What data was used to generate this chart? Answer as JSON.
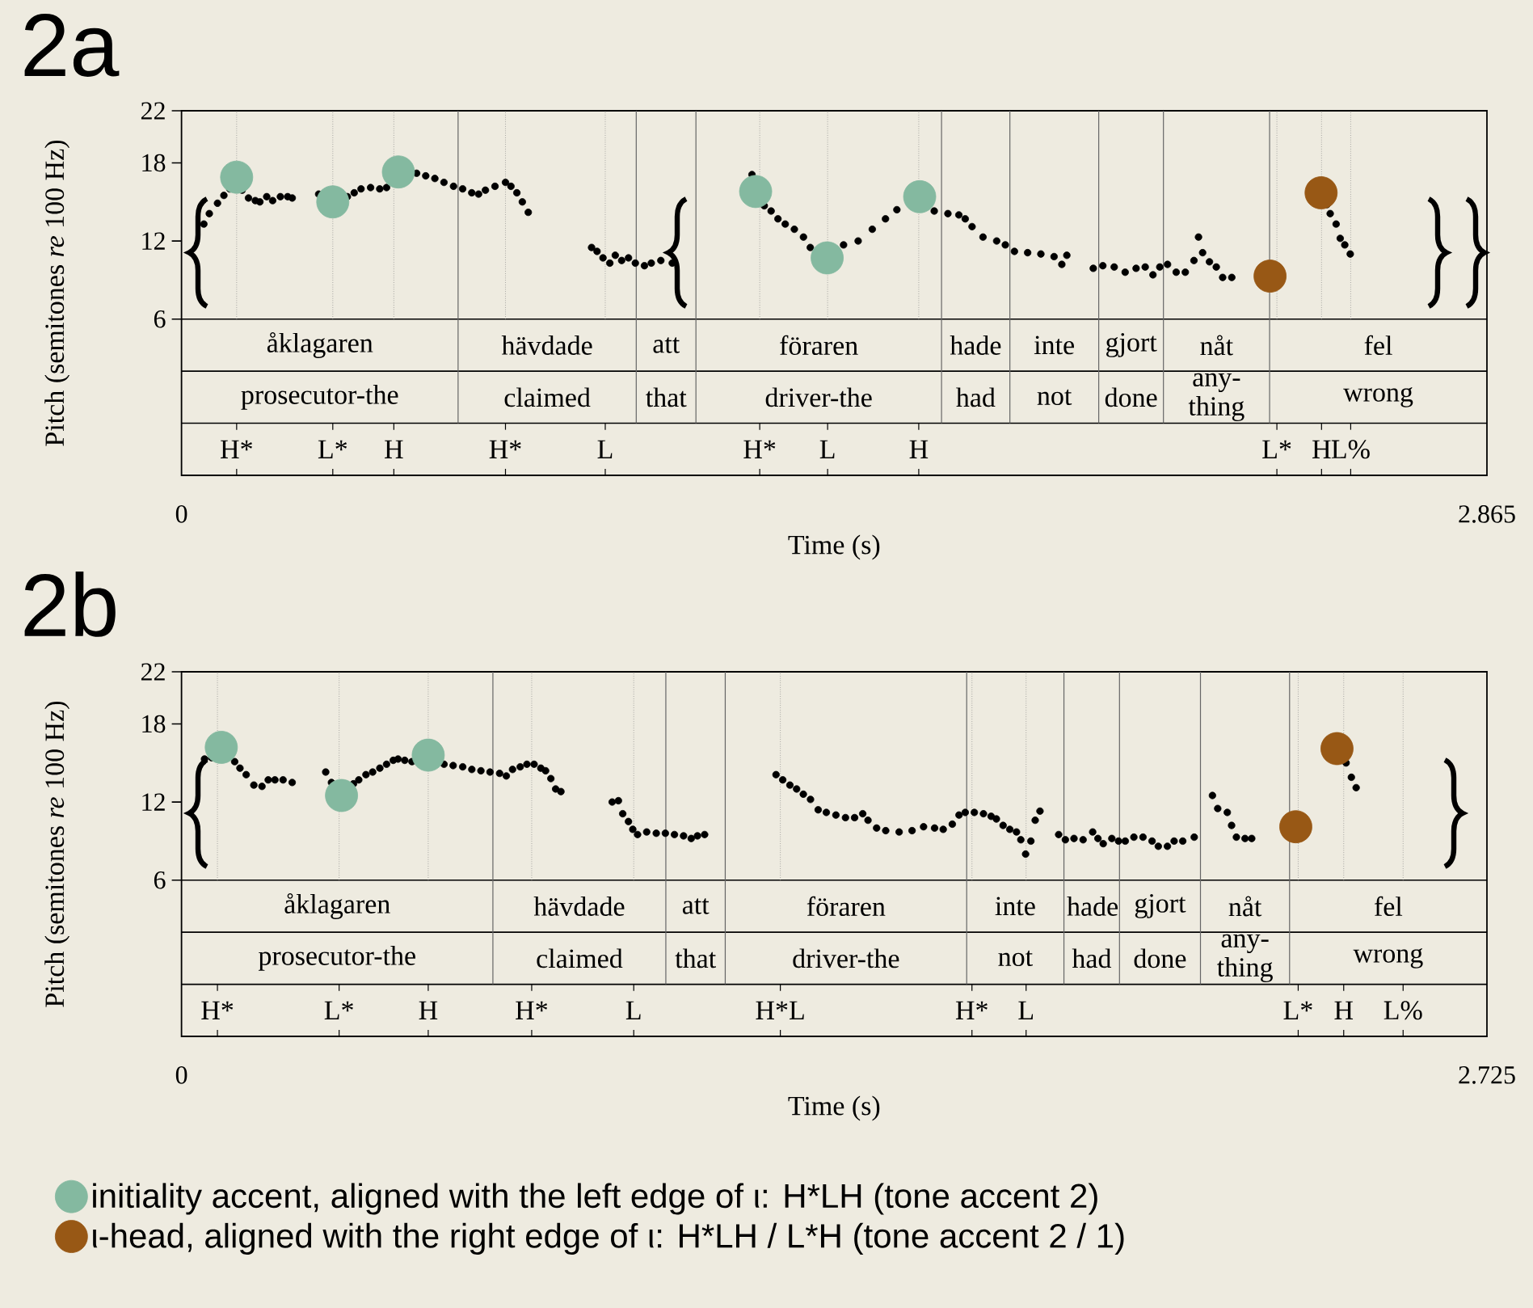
{
  "chart_data": [
    {
      "type": "scatter",
      "title": "2a",
      "xlabel": "Time (s)",
      "ylabel": "Pitch (semitones *re* 100 Hz)",
      "xlim": [
        0,
        2.865
      ],
      "ylim": [
        -6,
        22
      ],
      "xticks": [
        0,
        2.865
      ],
      "yticks": [
        6,
        12,
        18,
        22
      ],
      "series": [
        {
          "color": "#000000",
          "x": [
            0.049,
            0.061,
            0.079,
            0.093,
            0.106,
            0.133,
            0.147,
            0.162,
            0.172,
            0.187,
            0.2,
            0.217,
            0.233,
            0.243,
            0.301,
            0.364,
            0.379,
            0.394,
            0.415,
            0.435,
            0.45,
            0.516,
            0.536,
            0.556,
            0.576,
            0.597,
            0.617,
            0.637,
            0.652,
            0.667,
            0.688,
            0.711,
            0.723,
            0.736,
            0.748,
            0.761,
            0.9,
            0.912,
            0.925,
            0.94,
            0.952,
            0.966,
            0.981,
            0.996,
            1.016,
            1.031,
            1.052,
            1.077,
            1.252,
            1.279,
            1.294,
            1.309,
            1.325,
            1.345,
            1.365,
            1.38,
            1.453,
            1.485,
            1.516,
            1.545,
            1.57,
            1.652,
            1.682,
            1.706,
            1.72,
            1.735,
            1.759,
            1.789,
            1.808,
            1.828,
            1.857,
            1.886,
            1.915,
            1.932,
            1.943,
            2.001,
            2.022,
            2.047,
            2.071,
            2.095,
            2.115,
            2.132,
            2.147,
            2.164,
            2.183,
            2.203,
            2.222,
            2.232,
            2.241,
            2.256,
            2.271,
            2.285,
            2.305,
            2.514,
            2.521,
            2.534,
            2.543,
            2.553,
            2.565
          ],
          "values": [
            13.3,
            14.1,
            14.9,
            15.5,
            16.0,
            15.9,
            15.3,
            15.1,
            15.0,
            15.4,
            15.1,
            15.4,
            15.4,
            15.3,
            15.6,
            15.4,
            15.7,
            16.0,
            16.1,
            16.0,
            16.1,
            17.2,
            17.0,
            16.8,
            16.5,
            16.2,
            16.0,
            15.7,
            15.6,
            15.9,
            16.2,
            16.5,
            16.2,
            15.7,
            15.0,
            14.2,
            11.5,
            11.2,
            10.7,
            10.3,
            10.9,
            10.5,
            10.7,
            10.3,
            10.1,
            10.3,
            10.5,
            10.3,
            17.1,
            14.7,
            14.3,
            13.7,
            13.3,
            12.9,
            12.3,
            11.5,
            11.7,
            12.0,
            12.9,
            13.7,
            14.4,
            14.3,
            14.1,
            14.0,
            13.7,
            13.1,
            12.3,
            12.0,
            11.7,
            11.2,
            11.1,
            11.0,
            10.8,
            10.2,
            10.9,
            9.9,
            10.1,
            10.0,
            9.6,
            9.9,
            10.0,
            9.4,
            10.0,
            10.2,
            9.6,
            9.6,
            10.5,
            12.3,
            11.1,
            10.4,
            10.0,
            9.2,
            9.2,
            14.8,
            14.1,
            13.3,
            12.2,
            11.7,
            11.0
          ]
        },
        {
          "color": "#84b9a0",
          "x": [
            0.121,
            0.332,
            0.476,
            1.26,
            1.417,
            1.62
          ],
          "values": [
            16.9,
            15.0,
            17.3,
            15.8,
            10.7,
            15.4
          ]
        },
        {
          "color": "#985815",
          "x": [
            2.389,
            2.501
          ],
          "values": [
            9.3,
            15.7
          ]
        }
      ],
      "ref_lines": [
        {
          "axis": "y",
          "value": 6
        },
        {
          "axis": "y",
          "value": 2
        },
        {
          "axis": "y",
          "value": -2
        },
        {
          "axis": "x",
          "value": 0.607
        },
        {
          "axis": "x",
          "value": 0.998
        },
        {
          "axis": "x",
          "value": 1.129
        },
        {
          "axis": "x",
          "value": 1.668
        },
        {
          "axis": "x",
          "value": 1.818
        },
        {
          "axis": "x",
          "value": 2.013
        },
        {
          "axis": "x",
          "value": 2.155
        },
        {
          "axis": "x",
          "value": 2.388
        },
        {
          "axis": "x",
          "value": 0.121,
          "line_style": "dotted"
        },
        {
          "axis": "x",
          "value": 0.332,
          "line_style": "dotted"
        },
        {
          "axis": "x",
          "value": 0.466,
          "line_style": "dotted"
        },
        {
          "axis": "x",
          "value": 0.711,
          "line_style": "dotted"
        },
        {
          "axis": "x",
          "value": 0.93,
          "line_style": "dotted"
        },
        {
          "axis": "x",
          "value": 1.269,
          "line_style": "dotted"
        },
        {
          "axis": "x",
          "value": 1.418,
          "line_style": "dotted"
        },
        {
          "axis": "x",
          "value": 1.618,
          "line_style": "dotted"
        },
        {
          "axis": "x",
          "value": 2.404,
          "line_style": "dotted"
        },
        {
          "axis": "x",
          "value": 2.502,
          "line_style": "dotted"
        },
        {
          "axis": "x",
          "value": 2.566,
          "line_style": "dotted"
        }
      ],
      "annotations": [
        "åklagaren",
        "hävdade",
        "att",
        "föraren",
        "hade",
        "inte",
        "gjort",
        "nåt",
        "fel",
        "prosecutor-the",
        "claimed",
        "that",
        "driver-the",
        "had",
        "not",
        "done",
        "any-thing",
        "wrong",
        "H*",
        "L*",
        "H",
        "H*",
        "L",
        "H*",
        "L",
        "H",
        "L*",
        "H",
        "L%"
      ]
    },
    {
      "type": "scatter",
      "title": "2b",
      "xlabel": "Time (s)",
      "ylabel": "Pitch (semitones *re* 100 Hz)",
      "xlim": [
        0,
        2.725
      ],
      "ylim": [
        -6,
        22
      ],
      "xticks": [
        0,
        2.725
      ],
      "yticks": [
        6,
        12,
        18,
        22
      ],
      "legend": "bottom",
      "series": [
        {
          "color": "#000000",
          "x": [
            0.048,
            0.063,
            0.111,
            0.122,
            0.135,
            0.151,
            0.168,
            0.181,
            0.195,
            0.212,
            0.231,
            0.301,
            0.313,
            0.359,
            0.37,
            0.385,
            0.399,
            0.414,
            0.428,
            0.442,
            0.452,
            0.466,
            0.481,
            0.548,
            0.567,
            0.587,
            0.606,
            0.625,
            0.644,
            0.664,
            0.678,
            0.691,
            0.707,
            0.721,
            0.736,
            0.75,
            0.76,
            0.771,
            0.781,
            0.792,
            0.899,
            0.912,
            0.921,
            0.933,
            0.942,
            0.952,
            0.971,
            0.991,
            1.01,
            1.029,
            1.048,
            1.064,
            1.077,
            1.092,
            1.241,
            1.255,
            1.27,
            1.284,
            1.298,
            1.313,
            1.329,
            1.346,
            1.366,
            1.386,
            1.405,
            1.422,
            1.433,
            1.451,
            1.47,
            1.498,
            1.525,
            1.549,
            1.572,
            1.59,
            1.609,
            1.623,
            1.636,
            1.655,
            1.674,
            1.69,
            1.701,
            1.715,
            1.729,
            1.743,
            1.752,
            1.762,
            1.773,
            1.782,
            1.792,
            1.831,
            1.845,
            1.863,
            1.882,
            1.902,
            1.913,
            1.924,
            1.942,
            1.956,
            1.97,
            1.988,
            2.007,
            2.026,
            2.039,
            2.058,
            2.072,
            2.09,
            2.114,
            2.152,
            2.163,
            2.183,
            2.192,
            2.202,
            2.22,
            2.234,
            2.431,
            2.442,
            2.452
          ],
          "values": [
            15.3,
            15.4,
            15.1,
            14.6,
            14.1,
            13.3,
            13.2,
            13.7,
            13.7,
            13.7,
            13.5,
            14.3,
            13.5,
            13.4,
            13.7,
            14.1,
            14.3,
            14.6,
            14.9,
            15.2,
            15.3,
            15.2,
            15.1,
            14.9,
            14.8,
            14.7,
            14.5,
            14.4,
            14.3,
            14.2,
            14.0,
            14.5,
            14.7,
            14.9,
            14.9,
            14.6,
            14.4,
            13.8,
            13.0,
            12.8,
            12.0,
            12.1,
            11.1,
            10.5,
            9.9,
            9.5,
            9.7,
            9.6,
            9.6,
            9.5,
            9.4,
            9.2,
            9.4,
            9.5,
            14.1,
            13.7,
            13.3,
            13.0,
            12.6,
            12.2,
            11.4,
            11.2,
            11.0,
            10.8,
            10.8,
            11.1,
            10.6,
            10.0,
            9.8,
            9.7,
            9.8,
            10.1,
            10.0,
            9.9,
            10.3,
            11.0,
            11.2,
            11.2,
            11.1,
            10.9,
            10.7,
            10.2,
            9.9,
            9.7,
            9.1,
            8.0,
            9.0,
            10.6,
            11.3,
            9.5,
            9.1,
            9.2,
            9.1,
            9.7,
            9.2,
            8.8,
            9.2,
            9.0,
            9.0,
            9.3,
            9.3,
            9.0,
            8.6,
            8.6,
            9.0,
            9.0,
            9.3,
            12.5,
            11.5,
            11.2,
            10.2,
            9.3,
            9.2,
            9.2,
            15.0,
            13.9,
            13.1
          ]
        },
        {
          "name": "initiality accent, aligned with the left edge of ι: H*LH (tone accent 2)",
          "color": "#84b9a0",
          "x": [
            0.083,
            0.334,
            0.515
          ],
          "values": [
            16.2,
            12.5,
            15.6
          ]
        },
        {
          "name": "ι-head, aligned with the right edge of ι: H*LH / L*H (tone accent 2 / 1)",
          "color": "#985815",
          "x": [
            2.326,
            2.412
          ],
          "values": [
            10.1,
            16.1
          ]
        }
      ],
      "ref_lines": [
        {
          "axis": "y",
          "value": 6
        },
        {
          "axis": "y",
          "value": 2
        },
        {
          "axis": "y",
          "value": -2
        },
        {
          "axis": "x",
          "value": 0.65
        },
        {
          "axis": "x",
          "value": 1.011
        },
        {
          "axis": "x",
          "value": 1.135
        },
        {
          "axis": "x",
          "value": 1.639
        },
        {
          "axis": "x",
          "value": 1.842
        },
        {
          "axis": "x",
          "value": 1.958
        },
        {
          "axis": "x",
          "value": 2.127
        },
        {
          "axis": "x",
          "value": 2.313
        },
        {
          "axis": "x",
          "value": 0.075,
          "line_style": "dotted"
        },
        {
          "axis": "x",
          "value": 0.329,
          "line_style": "dotted"
        },
        {
          "axis": "x",
          "value": 0.515,
          "line_style": "dotted"
        },
        {
          "axis": "x",
          "value": 0.731,
          "line_style": "dotted"
        },
        {
          "axis": "x",
          "value": 0.944,
          "line_style": "dotted"
        },
        {
          "axis": "x",
          "value": 1.25,
          "line_style": "dotted"
        },
        {
          "axis": "x",
          "value": 1.65,
          "line_style": "dotted"
        },
        {
          "axis": "x",
          "value": 1.763,
          "line_style": "dotted"
        },
        {
          "axis": "x",
          "value": 2.331,
          "line_style": "dotted"
        },
        {
          "axis": "x",
          "value": 2.426,
          "line_style": "dotted"
        },
        {
          "axis": "x",
          "value": 2.55,
          "line_style": "dotted"
        }
      ],
      "annotations": [
        "åklagaren",
        "hävdade",
        "att",
        "föraren",
        "inte",
        "hade",
        "gjort",
        "nåt",
        "fel",
        "prosecutor-the",
        "claimed",
        "that",
        "driver-the",
        "not",
        "had",
        "done",
        "any-thing",
        "wrong",
        "H*",
        "L*",
        "H",
        "H*",
        "L",
        "H*L",
        "H*",
        "L",
        "L*",
        "H",
        "L%"
      ]
    }
  ]
}
